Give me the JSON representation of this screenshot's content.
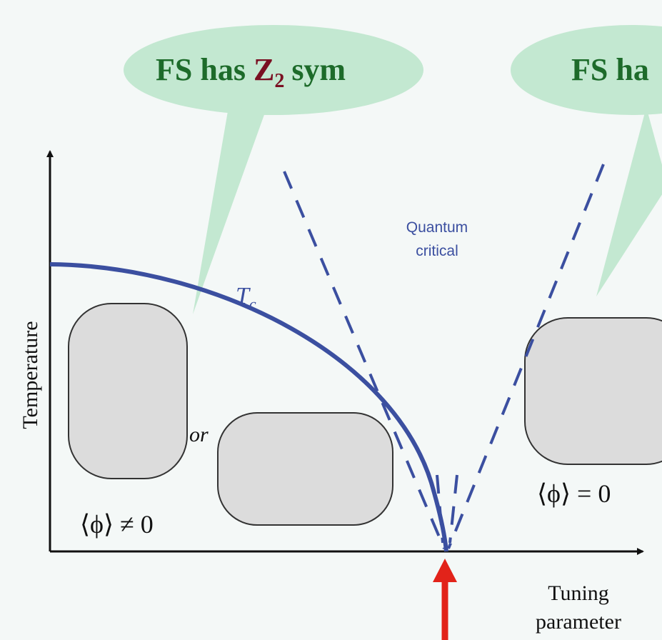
{
  "bubbles": [
    {
      "text": "FS has",
      "symbol": "Z",
      "subscript": "2",
      "suffix": "sym"
    },
    {
      "text": "FS ha"
    }
  ],
  "axes": {
    "y_label": "Temperature",
    "x_label_line1": "Tuning",
    "x_label_line2": "parameter"
  },
  "curve_label": {
    "symbol": "T",
    "subscript": "c"
  },
  "region_label": {
    "line1": "Quantum",
    "line2": "critical"
  },
  "connector": "or",
  "ordered_label": "⟨ϕ⟩ ≠ 0",
  "disordered_label": "⟨ϕ⟩ = 0"
}
